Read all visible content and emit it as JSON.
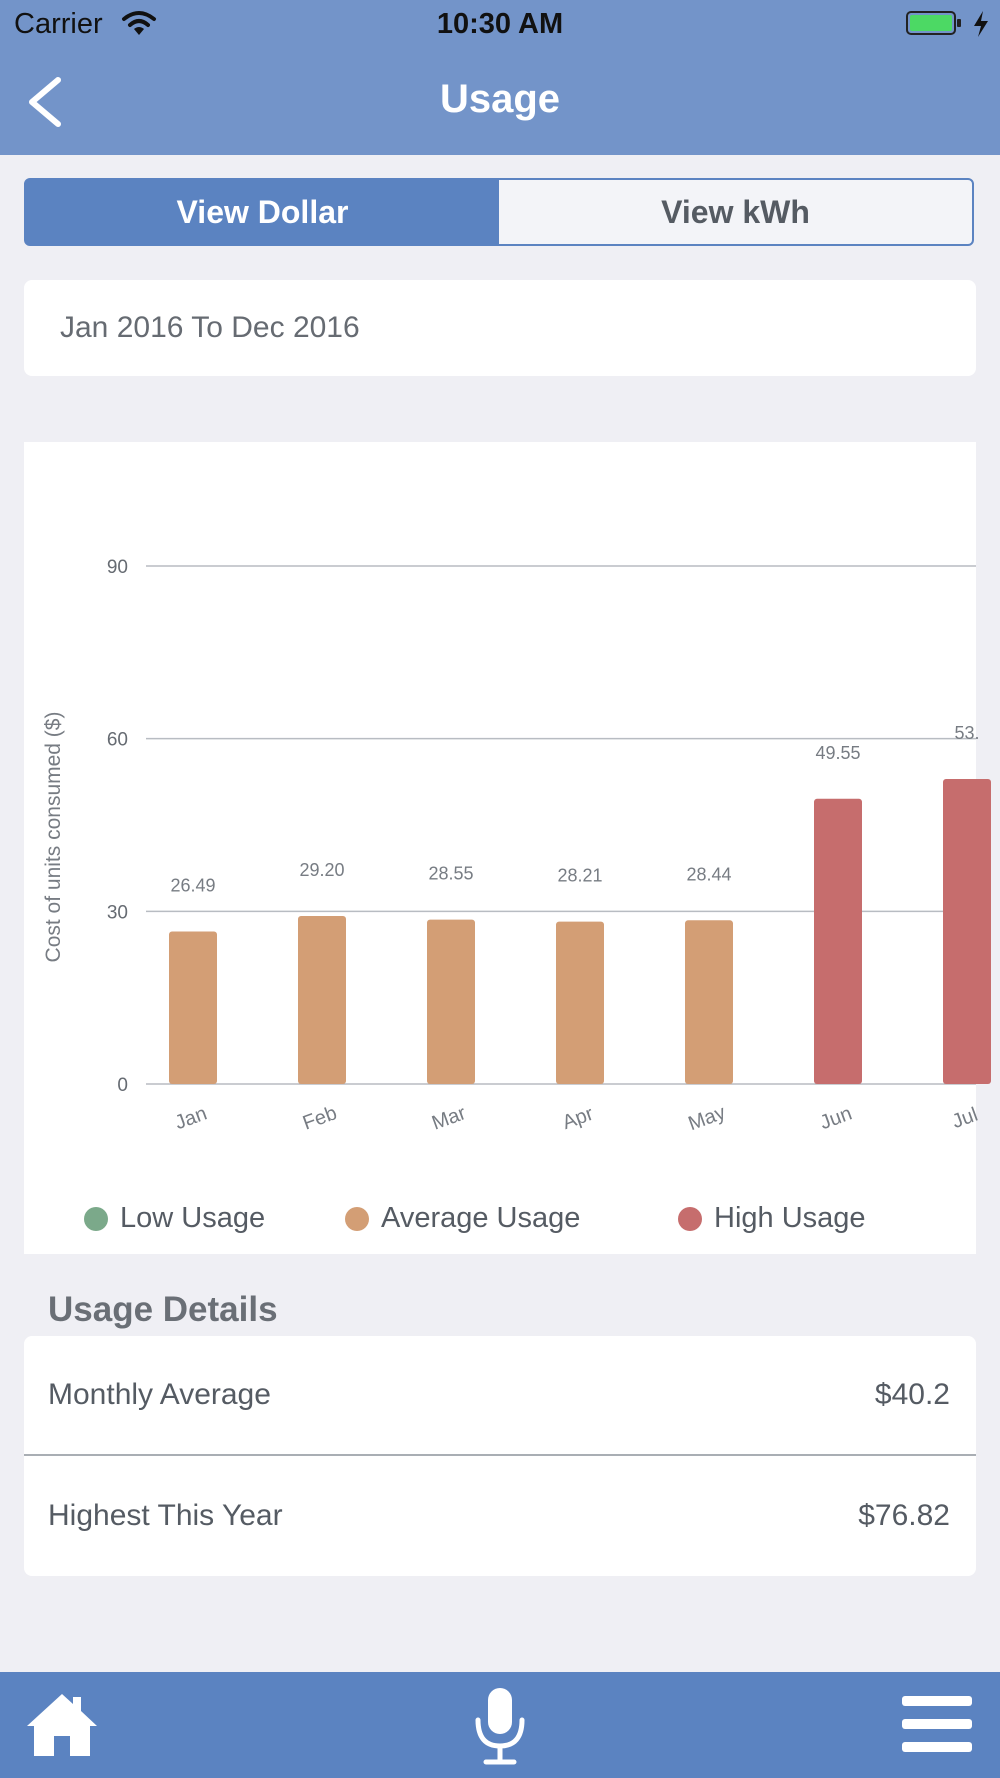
{
  "status_bar": {
    "carrier": "Carrier",
    "time": "10:30 AM"
  },
  "nav": {
    "title": "Usage"
  },
  "segments": {
    "dollar_label": "View Dollar",
    "kwh_label": "View kWh",
    "active": "View Dollar"
  },
  "date_range": "Jan 2016 To Dec 2016",
  "chart_data": {
    "type": "bar",
    "ylabel": "Cost of units consumed ($)",
    "ylim": [
      0,
      90
    ],
    "yticks": [
      "0",
      "30",
      "60",
      "90"
    ],
    "categories": [
      "Jan",
      "Feb",
      "Mar",
      "Apr",
      "May",
      "Jun",
      "Jul"
    ],
    "values": [
      26.49,
      29.2,
      28.55,
      28.21,
      28.44,
      49.55,
      53.0
    ],
    "value_labels": [
      "26.49",
      "29.20",
      "28.55",
      "28.21",
      "28.44",
      "49.55",
      "53."
    ],
    "usage_levels": [
      "average",
      "average",
      "average",
      "average",
      "average",
      "high",
      "high"
    ],
    "colors": {
      "low": "#7ba98a",
      "average": "#d39e75",
      "high": "#c66d6d"
    },
    "grid": true,
    "legend_position": "bottom"
  },
  "legend": [
    {
      "label": "Low Usage",
      "color": "#7ba98a"
    },
    {
      "label": "Average Usage",
      "color": "#d39e75"
    },
    {
      "label": "High Usage",
      "color": "#c66d6d"
    }
  ],
  "details": {
    "title": "Usage Details",
    "rows": [
      {
        "label": "Monthly Average",
        "value": "$40.2"
      },
      {
        "label": "Highest This Year",
        "value": "$76.82"
      }
    ]
  },
  "tab_bar": {
    "icons": [
      "home-icon",
      "microphone-icon",
      "menu-icon"
    ]
  }
}
